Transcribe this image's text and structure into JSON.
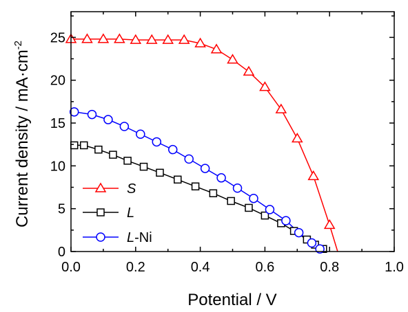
{
  "chart_data": {
    "type": "line",
    "xlabel": "Potential / V",
    "ylabel": "Current density / mA·cm",
    "ylabel_superscript": "-2",
    "xlim": [
      0.0,
      1.0
    ],
    "ylim": [
      0,
      28
    ],
    "x_ticks": [
      "0.0",
      "0.2",
      "0.4",
      "0.6",
      "0.8",
      "1.0"
    ],
    "y_ticks": [
      "0",
      "5",
      "10",
      "15",
      "20",
      "25"
    ],
    "grid": false,
    "legend_position": "bottom-left",
    "series": [
      {
        "name": "S",
        "name_italic": "S",
        "name_suffix": "",
        "color": "#ff0000",
        "marker": "triangle",
        "x": [
          0.0,
          0.05,
          0.1,
          0.15,
          0.2,
          0.25,
          0.3,
          0.35,
          0.4,
          0.45,
          0.5,
          0.55,
          0.6,
          0.65,
          0.7,
          0.75,
          0.8,
          0.825
        ],
        "y": [
          24.8,
          24.8,
          24.8,
          24.8,
          24.7,
          24.7,
          24.7,
          24.7,
          24.3,
          23.6,
          22.4,
          21.0,
          19.2,
          16.6,
          13.2,
          8.8,
          3.1,
          0.0
        ],
        "marker_count": 17
      },
      {
        "name": "L",
        "name_italic": "L",
        "name_suffix": "",
        "color": "#000000",
        "marker": "square",
        "x": [
          0.01,
          0.04,
          0.085,
          0.13,
          0.175,
          0.225,
          0.275,
          0.33,
          0.385,
          0.44,
          0.495,
          0.55,
          0.6,
          0.65,
          0.69,
          0.73,
          0.755,
          0.78,
          0.79
        ],
        "y": [
          12.4,
          12.4,
          11.9,
          11.3,
          10.6,
          9.9,
          9.2,
          8.4,
          7.6,
          6.8,
          5.9,
          5.1,
          4.2,
          3.3,
          2.4,
          1.4,
          0.8,
          0.3,
          0.0
        ],
        "marker_count": 18
      },
      {
        "name": "L-Ni",
        "name_italic": "L",
        "name_suffix": "-Ni",
        "color": "#0000ff",
        "marker": "circle",
        "x": [
          0.01,
          0.065,
          0.115,
          0.165,
          0.215,
          0.265,
          0.315,
          0.365,
          0.415,
          0.465,
          0.515,
          0.565,
          0.615,
          0.665,
          0.705,
          0.745,
          0.77,
          0.79
        ],
        "y": [
          16.3,
          16.0,
          15.4,
          14.6,
          13.7,
          12.8,
          11.9,
          10.8,
          9.7,
          8.6,
          7.4,
          6.2,
          4.9,
          3.6,
          2.2,
          1.0,
          0.3,
          0.0
        ],
        "marker_count": 17
      }
    ]
  }
}
